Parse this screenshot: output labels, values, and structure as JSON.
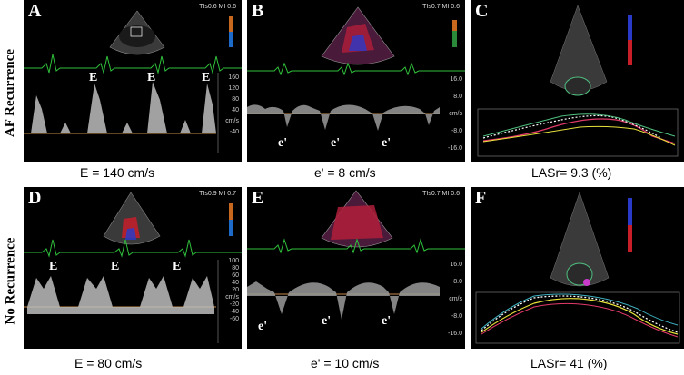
{
  "rows": [
    {
      "label": "AF Recurrence"
    },
    {
      "label": "No Recurrence"
    }
  ],
  "panels": {
    "A": {
      "letter": "A",
      "header": "TIs0.6   MI 0.6",
      "caption": "E = 140 cm/s",
      "peaks": [
        "E",
        "E",
        "E"
      ],
      "scale": [
        "160",
        "120",
        "80",
        "40",
        "cm/s",
        "-40"
      ]
    },
    "B": {
      "letter": "B",
      "header": "TIs0.7   MI 0.6",
      "caption": "e' = 8 cm/s",
      "peaks": [
        "e'",
        "e'",
        "e'"
      ],
      "scale": [
        "16.0",
        "8.0",
        "cm/s",
        "-8.0",
        "-16.0"
      ]
    },
    "C": {
      "letter": "C",
      "caption": "LASr= 9.3 (%)"
    },
    "D": {
      "letter": "D",
      "header": "TIs0.9   MI 0.7",
      "caption": "E = 80 cm/s",
      "peaks": [
        "E",
        "E",
        "E"
      ],
      "scale": [
        "100",
        "80",
        "60",
        "40",
        "20",
        "cm/s",
        "-20",
        "-40",
        "-60"
      ]
    },
    "E": {
      "letter": "E",
      "header": "TIs0.7   MI 0.6",
      "caption": "e' = 10 cm/s",
      "peaks": [
        "e'",
        "e'",
        "e'"
      ],
      "scale": [
        "16.0",
        "8.0",
        "cm/s",
        "-8.0",
        "-16.0"
      ]
    },
    "F": {
      "letter": "F",
      "caption": "LASr= 41 (%)"
    }
  },
  "colors": {
    "ecg": "#2fbf3a",
    "baseline": "#c98a4a",
    "strain_white": "#ffffff",
    "strain_yellow": "#e8e23a",
    "strain_red": "#e23a6a",
    "strain_green": "#4fbf7f",
    "strain_cyan": "#3fb0c0"
  }
}
